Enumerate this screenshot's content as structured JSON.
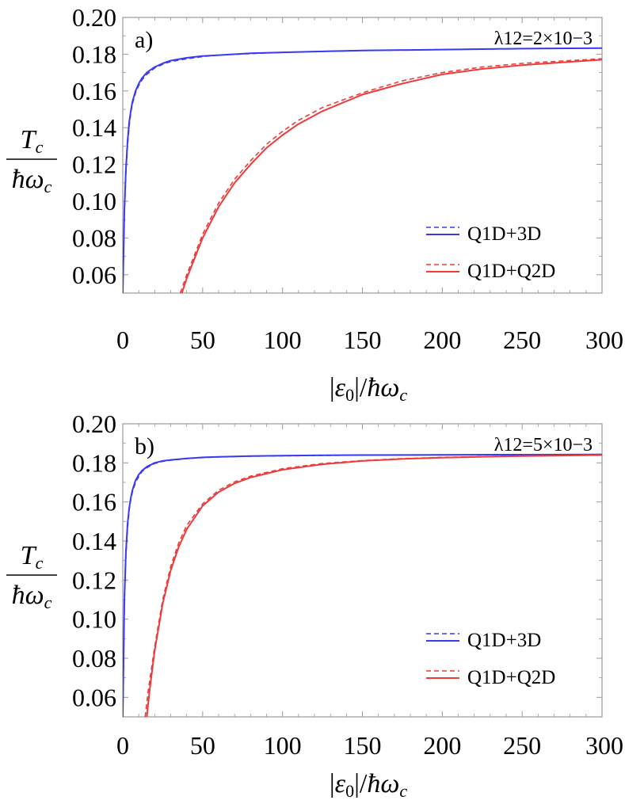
{
  "colors": {
    "blue": "#3a3af0",
    "red": "#ee3b3b",
    "frame": "#999999"
  },
  "chart_data": [
    {
      "type": "line",
      "panel_label": "a)",
      "parameter_label": "λ12=2×10−3",
      "ylabel": "Tc / ħωc",
      "xlabel": "|ε0|/ħωc",
      "xlim": [
        0,
        300
      ],
      "ylim": [
        0.05,
        0.2
      ],
      "xticks": [
        "0",
        "50",
        "100",
        "150",
        "200",
        "250",
        "300"
      ],
      "yticks": [
        "0.06",
        "0.08",
        "0.10",
        "0.12",
        "0.14",
        "0.16",
        "0.18",
        "0.20"
      ],
      "legend_position": "lower-right",
      "series": [
        {
          "name": "Q1D+3D",
          "color": "blue",
          "style": "solid",
          "x": [
            0,
            1,
            2,
            3,
            4,
            5,
            6,
            8,
            10,
            12,
            15,
            20,
            25,
            30,
            40,
            50,
            60,
            80,
            100,
            125,
            150,
            200,
            250,
            300
          ],
          "y": [
            0.05,
            0.095,
            0.118,
            0.133,
            0.143,
            0.149,
            0.154,
            0.16,
            0.164,
            0.167,
            0.17,
            0.173,
            0.175,
            0.1765,
            0.178,
            0.179,
            0.1795,
            0.1805,
            0.181,
            0.1815,
            0.182,
            0.1825,
            0.183,
            0.1833
          ]
        },
        {
          "name": "Q1D+3D",
          "color": "blue",
          "style": "dashed",
          "x": [
            0,
            1,
            2,
            3,
            4,
            5,
            6,
            8,
            10,
            12,
            15,
            20,
            25,
            30,
            40,
            50,
            60,
            80,
            100,
            125,
            150,
            200,
            250,
            300
          ],
          "y": [
            0.05,
            0.093,
            0.116,
            0.131,
            0.141,
            0.148,
            0.153,
            0.159,
            0.163,
            0.166,
            0.169,
            0.1725,
            0.1745,
            0.176,
            0.1775,
            0.1787,
            0.1795,
            0.1803,
            0.181,
            0.1815,
            0.182,
            0.1825,
            0.183,
            0.1833
          ]
        },
        {
          "name": "Q1D+Q2D",
          "color": "red",
          "style": "solid",
          "x": [
            37,
            40,
            45,
            50,
            60,
            70,
            80,
            90,
            100,
            110,
            125,
            150,
            175,
            200,
            225,
            250,
            275,
            300
          ],
          "y": [
            0.05,
            0.058,
            0.069,
            0.08,
            0.097,
            0.11,
            0.12,
            0.129,
            0.136,
            0.142,
            0.149,
            0.158,
            0.164,
            0.169,
            0.172,
            0.174,
            0.1755,
            0.177
          ]
        },
        {
          "name": "Q1D+Q2D",
          "color": "red",
          "style": "dashed",
          "x": [
            36,
            40,
            45,
            50,
            60,
            70,
            80,
            90,
            100,
            110,
            125,
            150,
            175,
            200,
            225,
            250,
            275,
            300
          ],
          "y": [
            0.05,
            0.06,
            0.071,
            0.082,
            0.099,
            0.112,
            0.122,
            0.131,
            0.138,
            0.144,
            0.151,
            0.159,
            0.1655,
            0.17,
            0.173,
            0.175,
            0.1763,
            0.1775
          ]
        }
      ]
    },
    {
      "type": "line",
      "panel_label": "b)",
      "parameter_label": "λ12=5×10−3",
      "ylabel": "Tc / ħωc",
      "xlabel": "|ε0|/ħωc",
      "xlim": [
        0,
        300
      ],
      "ylim": [
        0.05,
        0.2
      ],
      "xticks": [
        "0",
        "50",
        "100",
        "150",
        "200",
        "250",
        "300"
      ],
      "yticks": [
        "0.06",
        "0.08",
        "0.10",
        "0.12",
        "0.14",
        "0.16",
        "0.18",
        "0.20"
      ],
      "legend_position": "lower-right",
      "series": [
        {
          "name": "Q1D+3D",
          "color": "blue",
          "style": "solid",
          "x": [
            0,
            1,
            2,
            3,
            4,
            5,
            6,
            8,
            10,
            12,
            15,
            20,
            25,
            30,
            40,
            50,
            60,
            80,
            100,
            125,
            150,
            200,
            250,
            300
          ],
          "y": [
            0.05,
            0.11,
            0.135,
            0.149,
            0.157,
            0.162,
            0.166,
            0.171,
            0.174,
            0.176,
            0.178,
            0.18,
            0.181,
            0.1815,
            0.1823,
            0.1828,
            0.1831,
            0.1835,
            0.1837,
            0.1839,
            0.184,
            0.1841,
            0.1842,
            0.1843
          ]
        },
        {
          "name": "Q1D+3D",
          "color": "blue",
          "style": "dashed",
          "x": [
            0,
            1,
            2,
            3,
            4,
            5,
            6,
            8,
            10,
            12,
            15,
            20,
            25,
            30,
            40,
            50,
            60,
            80,
            100,
            125,
            150,
            200,
            250,
            300
          ],
          "y": [
            0.05,
            0.108,
            0.133,
            0.147,
            0.156,
            0.161,
            0.165,
            0.17,
            0.173,
            0.1755,
            0.1775,
            0.1797,
            0.1808,
            0.1813,
            0.1822,
            0.1827,
            0.183,
            0.1834,
            0.1836,
            0.1838,
            0.184,
            0.1841,
            0.1842,
            0.1843
          ]
        },
        {
          "name": "Q1D+Q2D",
          "color": "red",
          "style": "solid",
          "x": [
            15,
            17,
            20,
            25,
            30,
            35,
            40,
            50,
            60,
            70,
            80,
            100,
            125,
            150,
            175,
            200,
            250,
            300
          ],
          "y": [
            0.05,
            0.065,
            0.084,
            0.108,
            0.125,
            0.137,
            0.146,
            0.158,
            0.165,
            0.1695,
            0.1725,
            0.1765,
            0.1793,
            0.181,
            0.182,
            0.1827,
            0.1835,
            0.184
          ]
        },
        {
          "name": "Q1D+Q2D",
          "color": "red",
          "style": "dashed",
          "x": [
            14,
            16,
            20,
            25,
            30,
            35,
            40,
            50,
            60,
            70,
            80,
            100,
            125,
            150,
            175,
            200,
            250,
            300
          ],
          "y": [
            0.05,
            0.064,
            0.086,
            0.11,
            0.127,
            0.139,
            0.148,
            0.159,
            0.166,
            0.1703,
            0.1732,
            0.177,
            0.1797,
            0.1812,
            0.1822,
            0.1828,
            0.1836,
            0.1841
          ]
        }
      ]
    }
  ]
}
